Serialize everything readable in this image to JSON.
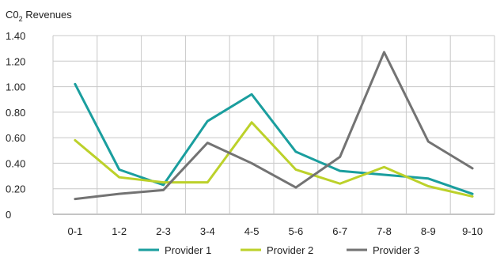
{
  "chart_data": {
    "type": "line",
    "ylabel_main": "C0",
    "ylabel_sub": "2",
    "ylabel_rest": " Revenues",
    "categories": [
      "0-1",
      "1-2",
      "2-3",
      "3-4",
      "4-5",
      "5-6",
      "6-7",
      "7-8",
      "8-9",
      "9-10"
    ],
    "y_ticks": [
      "0",
      "0.20",
      "0.40",
      "0.60",
      "0.80",
      "1.00",
      "1.20",
      "1.40"
    ],
    "ylim": [
      0,
      1.4
    ],
    "grid": true,
    "legend_position": "bottom",
    "series": [
      {
        "name": "Provider 1",
        "color": "#1a9e9e",
        "values": [
          1.02,
          0.35,
          0.23,
          0.73,
          0.94,
          0.49,
          0.34,
          0.31,
          0.28,
          0.16
        ]
      },
      {
        "name": "Provider 2",
        "color": "#bcd12a",
        "values": [
          0.58,
          0.29,
          0.25,
          0.25,
          0.72,
          0.35,
          0.24,
          0.37,
          0.22,
          0.14
        ]
      },
      {
        "name": "Provider 3",
        "color": "#737373",
        "values": [
          0.12,
          0.16,
          0.19,
          0.56,
          0.4,
          0.21,
          0.45,
          1.27,
          0.57,
          0.36
        ]
      }
    ]
  }
}
